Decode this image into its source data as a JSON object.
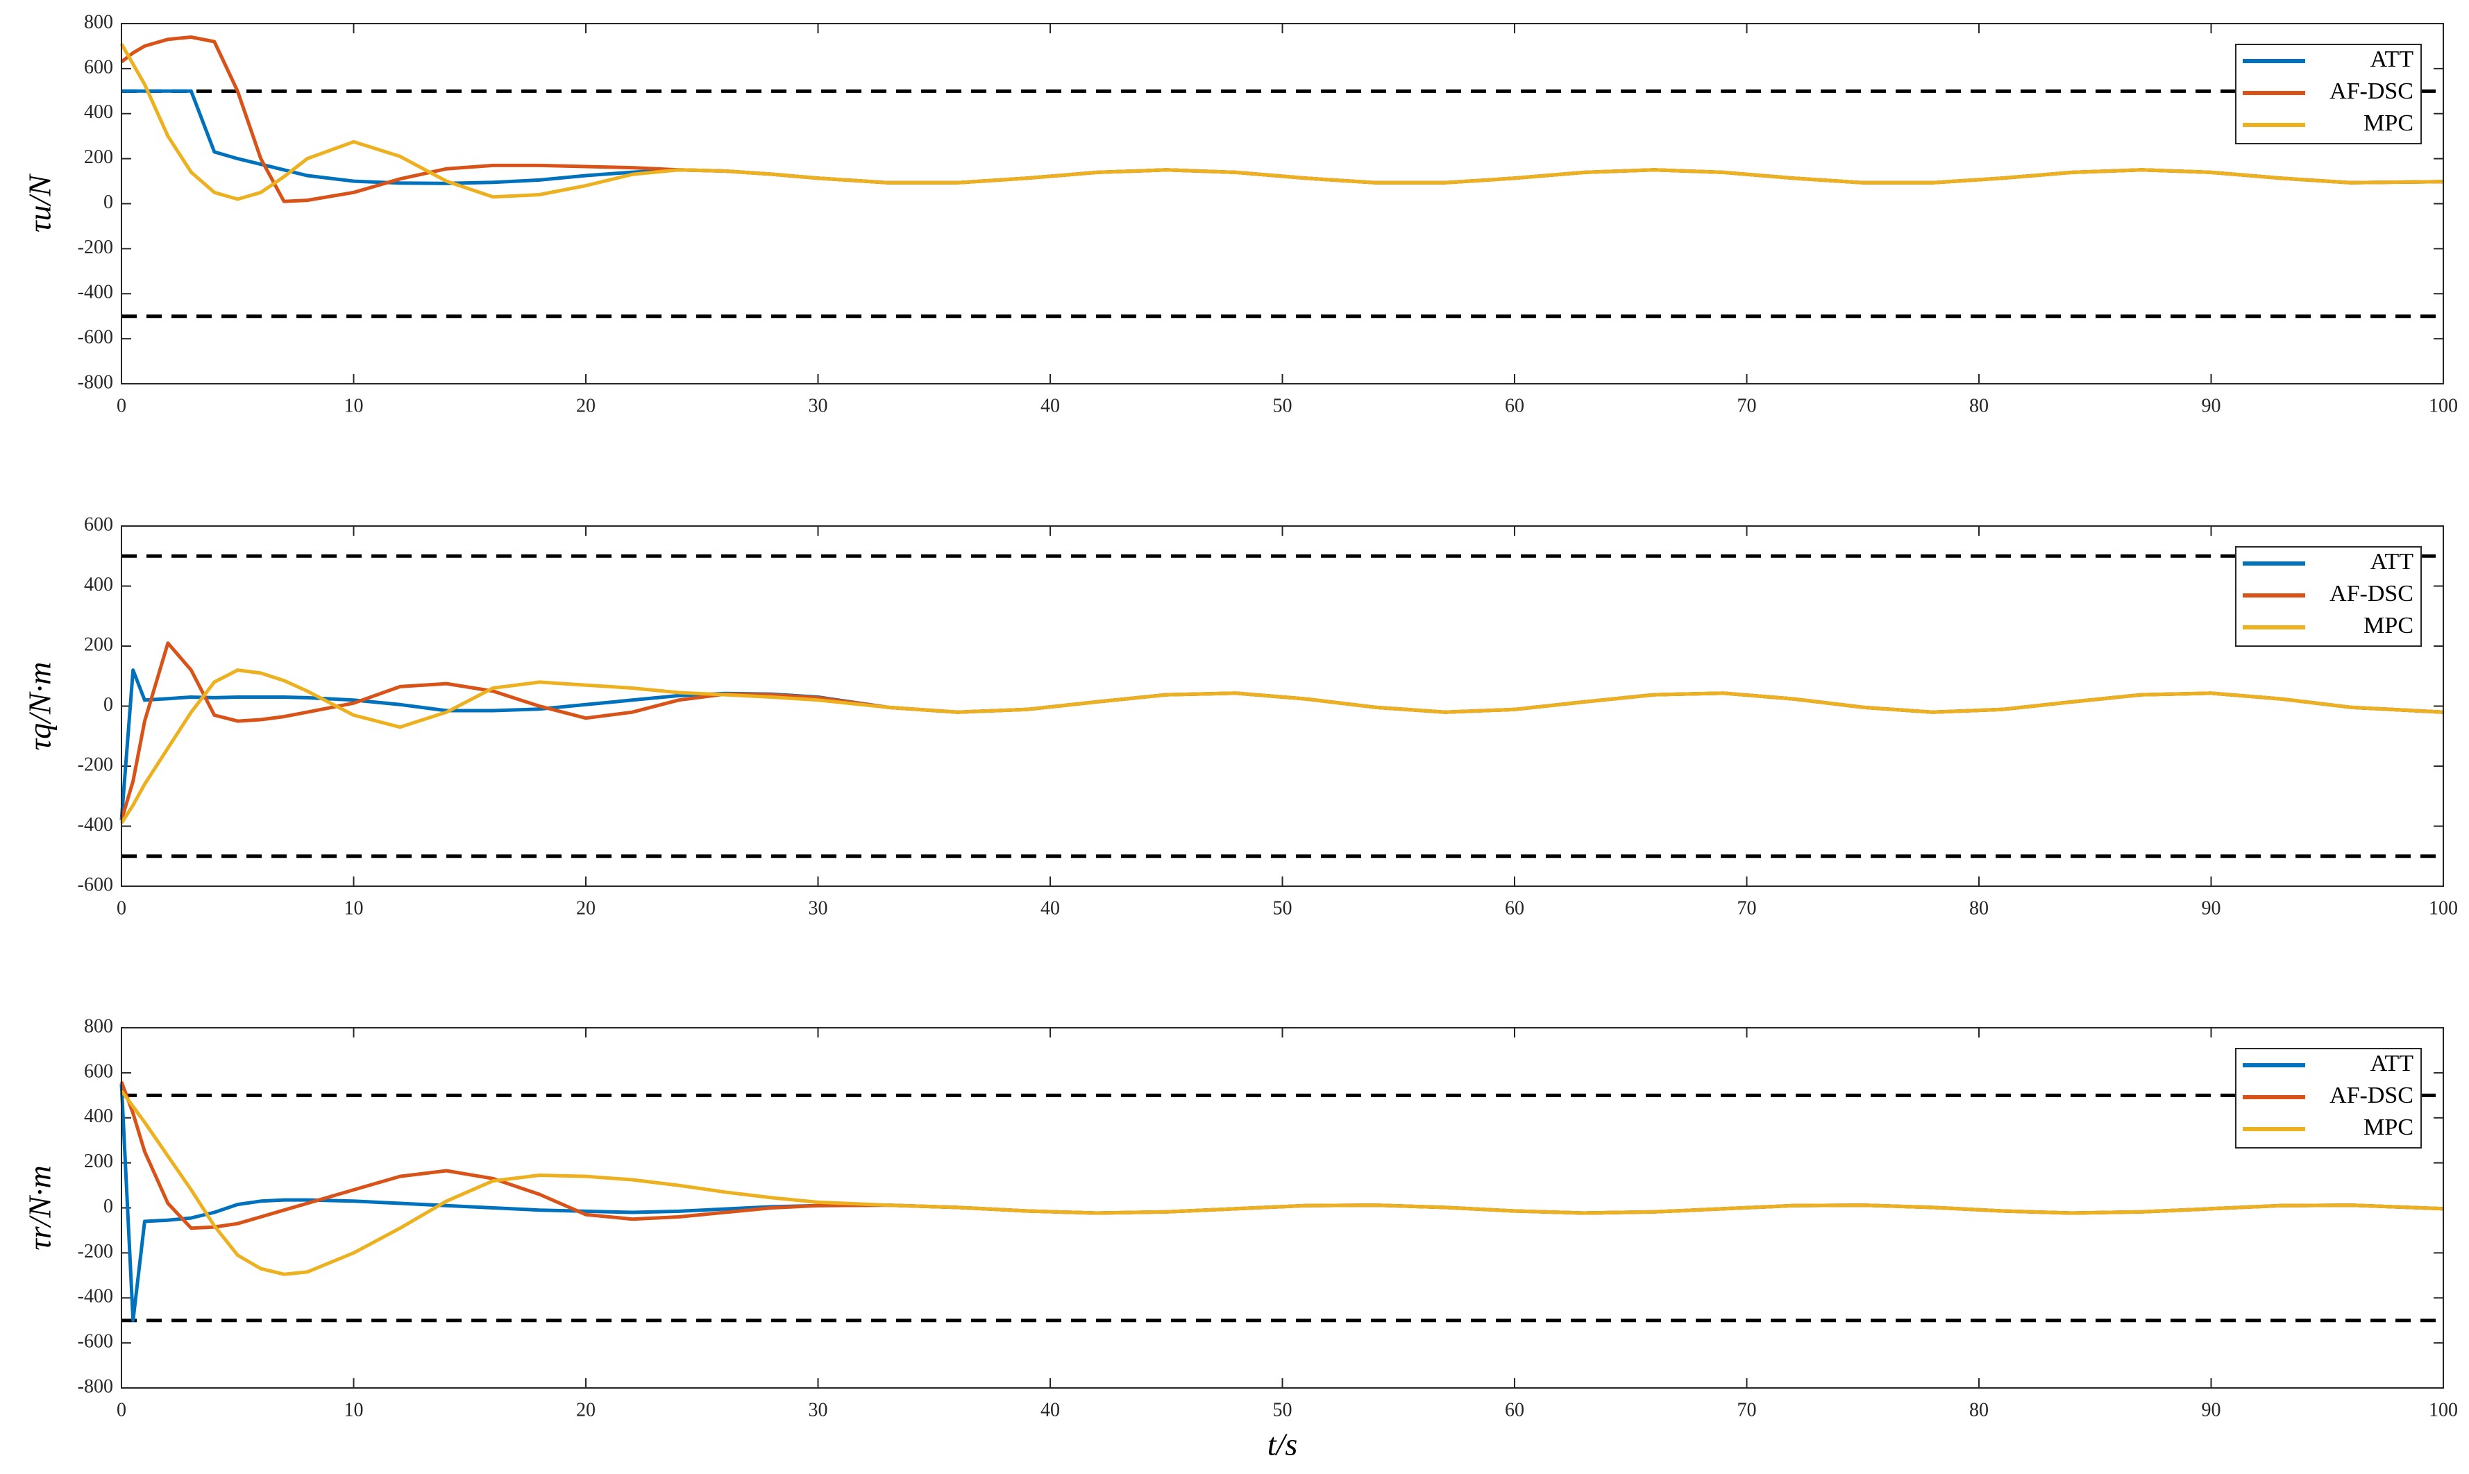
{
  "chart_data": [
    {
      "type": "line",
      "ylabel": "τu/N",
      "x": [
        0,
        0.5,
        1,
        2,
        3,
        4,
        5,
        6,
        7,
        8,
        10,
        12,
        14,
        16,
        18,
        20,
        22,
        24,
        26,
        28,
        30,
        33,
        36,
        39,
        42,
        45,
        48,
        51,
        54,
        57,
        60,
        63,
        66,
        69,
        72,
        75,
        78,
        81,
        84,
        87,
        90,
        93,
        96,
        100
      ],
      "xlim": [
        0,
        100
      ],
      "xticks": [
        0,
        10,
        20,
        30,
        40,
        50,
        60,
        70,
        80,
        90,
        100
      ],
      "ylim": [
        -800,
        800
      ],
      "yticks": [
        -800,
        -600,
        -400,
        -200,
        0,
        200,
        400,
        600,
        800
      ],
      "reference_lines": [
        500,
        -500
      ],
      "legend": "upper right",
      "series": [
        {
          "name": "ATT",
          "color": "#0072bd",
          "values": [
            500,
            500,
            500,
            500,
            500,
            230,
            200,
            175,
            150,
            125,
            100,
            92,
            90,
            95,
            105,
            125,
            140,
            150,
            145,
            131,
            113,
            93,
            93,
            113,
            139,
            150,
            139,
            113,
            93,
            93,
            113,
            139,
            150,
            139,
            113,
            93,
            93,
            113,
            139,
            150,
            139,
            113,
            93,
            98
          ]
        },
        {
          "name": "AF-DSC",
          "color": "#d95319",
          "values": [
            630,
            670,
            700,
            730,
            740,
            720,
            500,
            200,
            10,
            15,
            50,
            110,
            155,
            170,
            170,
            165,
            160,
            150,
            145,
            131,
            113,
            93,
            93,
            113,
            139,
            150,
            139,
            113,
            93,
            93,
            113,
            139,
            150,
            139,
            113,
            93,
            93,
            113,
            139,
            150,
            139,
            113,
            93,
            98
          ]
        },
        {
          "name": "MPC",
          "color": "#edb120",
          "values": [
            710,
            620,
            530,
            300,
            140,
            50,
            20,
            50,
            120,
            200,
            275,
            210,
            100,
            30,
            40,
            80,
            130,
            150,
            145,
            131,
            113,
            93,
            93,
            113,
            139,
            150,
            139,
            113,
            93,
            93,
            113,
            139,
            150,
            139,
            113,
            93,
            93,
            113,
            139,
            150,
            139,
            113,
            93,
            98
          ]
        }
      ]
    },
    {
      "type": "line",
      "ylabel": "τq/N·m",
      "x": [
        0,
        0.5,
        1,
        2,
        3,
        4,
        5,
        6,
        7,
        8,
        10,
        12,
        14,
        16,
        18,
        20,
        22,
        24,
        26,
        28,
        30,
        33,
        36,
        39,
        42,
        45,
        48,
        51,
        54,
        57,
        60,
        63,
        66,
        69,
        72,
        75,
        78,
        81,
        84,
        87,
        90,
        93,
        96,
        100
      ],
      "xlim": [
        0,
        100
      ],
      "xticks": [
        0,
        10,
        20,
        30,
        40,
        50,
        60,
        70,
        80,
        90,
        100
      ],
      "ylim": [
        -600,
        600
      ],
      "yticks": [
        -600,
        -400,
        -200,
        0,
        200,
        400,
        600
      ],
      "reference_lines": [
        500,
        -500
      ],
      "legend": "upper right",
      "series": [
        {
          "name": "ATT",
          "color": "#0072bd",
          "values": [
            -380,
            120,
            20,
            25,
            30,
            28,
            30,
            30,
            30,
            28,
            20,
            5,
            -15,
            -15,
            -10,
            5,
            20,
            35,
            42,
            40,
            30,
            -4,
            -20,
            -11,
            14,
            38,
            43,
            24,
            -4,
            -20,
            -11,
            14,
            38,
            43,
            24,
            -4,
            -20,
            -11,
            14,
            38,
            43,
            24,
            -4,
            -20
          ]
        },
        {
          "name": "AF-DSC",
          "color": "#d95319",
          "values": [
            -380,
            -250,
            -50,
            210,
            120,
            -30,
            -50,
            -45,
            -35,
            -20,
            10,
            65,
            75,
            50,
            0,
            -40,
            -20,
            20,
            40,
            38,
            28,
            -4,
            -20,
            -11,
            14,
            38,
            43,
            24,
            -4,
            -20,
            -11,
            14,
            38,
            43,
            24,
            -4,
            -20,
            -11,
            14,
            38,
            43,
            24,
            -4,
            -20
          ]
        },
        {
          "name": "MPC",
          "color": "#edb120",
          "values": [
            -390,
            -330,
            -260,
            -140,
            -20,
            80,
            120,
            110,
            85,
            50,
            -30,
            -70,
            -20,
            60,
            80,
            70,
            60,
            45,
            38,
            30,
            20,
            -4,
            -20,
            -11,
            14,
            38,
            43,
            24,
            -4,
            -20,
            -11,
            14,
            38,
            43,
            24,
            -4,
            -20,
            -11,
            14,
            38,
            43,
            24,
            -4,
            -20
          ]
        }
      ]
    },
    {
      "type": "line",
      "ylabel": "τr/N·m",
      "xlabel": "t/s",
      "x": [
        0,
        0.5,
        1,
        2,
        3,
        4,
        5,
        6,
        7,
        8,
        10,
        12,
        14,
        16,
        18,
        20,
        22,
        24,
        26,
        28,
        30,
        33,
        36,
        39,
        42,
        45,
        48,
        51,
        54,
        57,
        60,
        63,
        66,
        69,
        72,
        75,
        78,
        81,
        84,
        87,
        90,
        93,
        96,
        100
      ],
      "xlim": [
        0,
        100
      ],
      "xticks": [
        0,
        10,
        20,
        30,
        40,
        50,
        60,
        70,
        80,
        90,
        100
      ],
      "ylim": [
        -800,
        800
      ],
      "yticks": [
        -800,
        -600,
        -400,
        -200,
        0,
        200,
        400,
        600,
        800
      ],
      "reference_lines": [
        500,
        -500
      ],
      "legend": "upper right",
      "series": [
        {
          "name": "ATT",
          "color": "#0072bd",
          "values": [
            550,
            -500,
            -60,
            -55,
            -45,
            -20,
            15,
            30,
            35,
            35,
            30,
            20,
            10,
            0,
            -10,
            -15,
            -20,
            -15,
            -5,
            5,
            10,
            12,
            2,
            -14,
            -23,
            -18,
            -4,
            10,
            12,
            2,
            -14,
            -23,
            -18,
            -4,
            10,
            12,
            2,
            -14,
            -23,
            -18,
            -4,
            10,
            12,
            -4
          ]
        },
        {
          "name": "AF-DSC",
          "color": "#d95319",
          "values": [
            560,
            420,
            250,
            20,
            -90,
            -85,
            -70,
            -40,
            -10,
            20,
            80,
            140,
            165,
            130,
            60,
            -30,
            -50,
            -40,
            -20,
            0,
            10,
            12,
            2,
            -14,
            -23,
            -18,
            -4,
            10,
            12,
            2,
            -14,
            -23,
            -18,
            -4,
            10,
            12,
            2,
            -14,
            -23,
            -18,
            -4,
            10,
            12,
            -4
          ]
        },
        {
          "name": "MPC",
          "color": "#edb120",
          "values": [
            520,
            450,
            380,
            230,
            80,
            -80,
            -210,
            -270,
            -295,
            -285,
            -200,
            -90,
            30,
            120,
            145,
            140,
            125,
            100,
            70,
            45,
            25,
            12,
            2,
            -14,
            -23,
            -18,
            -4,
            10,
            12,
            2,
            -14,
            -23,
            -18,
            -4,
            10,
            12,
            2,
            -14,
            -23,
            -18,
            -4,
            10,
            12,
            -4
          ]
        }
      ]
    }
  ]
}
